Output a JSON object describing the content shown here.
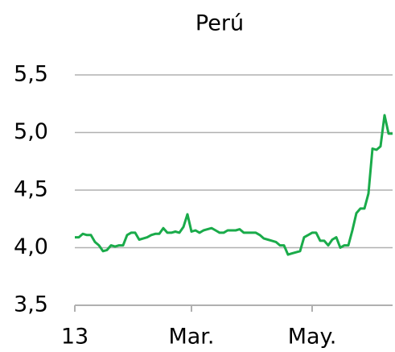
{
  "chart_data": {
    "type": "line",
    "title": "Perú",
    "categories": [
      "13",
      null,
      null,
      null,
      null,
      null,
      null,
      null,
      null,
      null,
      null,
      null,
      null,
      null,
      null,
      null,
      null,
      null,
      null,
      null,
      null,
      null,
      null,
      null,
      null,
      null,
      null,
      null,
      null,
      "Mar.",
      null,
      null,
      null,
      null,
      null,
      null,
      null,
      null,
      null,
      null,
      null,
      null,
      null,
      null,
      null,
      null,
      null,
      null,
      null,
      null,
      null,
      null,
      null,
      null,
      null,
      null,
      null,
      null,
      null,
      "May.",
      null,
      null,
      null,
      null,
      null,
      null,
      null,
      null,
      null,
      null,
      null,
      null,
      null,
      null,
      null,
      null,
      null,
      null,
      null,
      null
    ],
    "series": [
      {
        "color": "#1aab4a",
        "values": [
          4.09,
          4.09,
          4.12,
          4.11,
          4.11,
          4.05,
          4.02,
          3.97,
          3.98,
          4.02,
          4.01,
          4.02,
          4.02,
          4.11,
          4.13,
          4.13,
          4.07,
          4.08,
          4.09,
          4.11,
          4.12,
          4.12,
          4.17,
          4.13,
          4.13,
          4.14,
          4.13,
          4.18,
          4.29,
          4.14,
          4.15,
          4.13,
          4.15,
          4.16,
          4.17,
          4.15,
          4.13,
          4.13,
          4.15,
          4.15,
          4.15,
          4.16,
          4.13,
          4.13,
          4.13,
          4.13,
          4.11,
          4.08,
          4.07,
          4.06,
          4.05,
          4.02,
          4.02,
          3.94,
          3.95,
          3.96,
          3.97,
          4.09,
          4.11,
          4.13,
          4.13,
          4.06,
          4.06,
          4.02,
          4.07,
          4.09,
          4.0,
          4.02,
          4.02,
          4.15,
          4.3,
          4.34,
          4.34,
          4.47,
          4.86,
          4.85,
          4.88,
          5.15,
          4.99,
          4.99
        ]
      }
    ],
    "ylim": [
      3.5,
      5.5
    ],
    "yticks": [
      {
        "value": 3.5,
        "label": "3,5"
      },
      {
        "value": 4.0,
        "label": "4,0"
      },
      {
        "value": 4.5,
        "label": "4,5"
      },
      {
        "value": 5.0,
        "label": "5,0"
      },
      {
        "value": 5.5,
        "label": "5,5"
      }
    ],
    "grid": true
  }
}
